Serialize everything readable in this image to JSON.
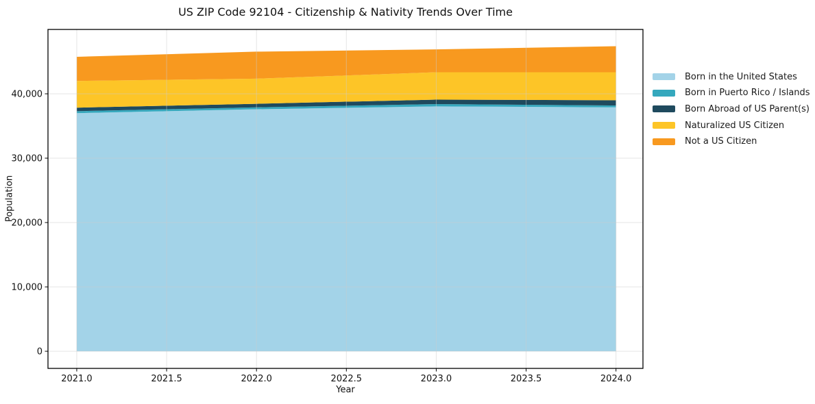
{
  "title": "US ZIP Code 92104 - Citizenship & Nativity Trends Over Time",
  "chart_data": {
    "type": "area",
    "stacked": true,
    "title": "US ZIP Code 92104 - Citizenship & Nativity Trends Over Time",
    "xlabel": "Year",
    "ylabel": "Population",
    "x": [
      2021,
      2022,
      2023,
      2024
    ],
    "series": [
      {
        "name": "Born in the United States",
        "color": "#a3d3e8",
        "values": [
          37000,
          37600,
          38050,
          37900
        ]
      },
      {
        "name": "Born in Puerto Rico / Islands",
        "color": "#35a8bd",
        "values": [
          300,
          300,
          350,
          280
        ]
      },
      {
        "name": "Born Abroad of US Parent(s)",
        "color": "#1f4a5e",
        "values": [
          550,
          550,
          700,
          820
        ]
      },
      {
        "name": "Naturalized US Citizen",
        "color": "#fdc527",
        "values": [
          4150,
          3900,
          4250,
          4350
        ]
      },
      {
        "name": "Not a US Citizen",
        "color": "#f8991f",
        "values": [
          3750,
          4200,
          3550,
          4050
        ]
      }
    ],
    "stacked_totals": [
      45750,
      46550,
      46900,
      47400
    ],
    "xlim": [
      2020.84,
      2024.15
    ],
    "ylim": [
      -2660,
      50000
    ],
    "x_ticks": [
      {
        "v": 2021.0,
        "label": "2021.0"
      },
      {
        "v": 2021.5,
        "label": "2021.5"
      },
      {
        "v": 2022.0,
        "label": "2022.0"
      },
      {
        "v": 2022.5,
        "label": "2022.5"
      },
      {
        "v": 2023.0,
        "label": "2023.0"
      },
      {
        "v": 2023.5,
        "label": "2023.5"
      },
      {
        "v": 2024.0,
        "label": "2024.0"
      }
    ],
    "y_ticks": [
      {
        "v": 0,
        "label": "0"
      },
      {
        "v": 10000,
        "label": "10,000"
      },
      {
        "v": 20000,
        "label": "20,000"
      },
      {
        "v": 30000,
        "label": "30,000"
      },
      {
        "v": 40000,
        "label": "40,000"
      }
    ],
    "grid": true,
    "grid_color": "#cccccc",
    "spine_color": "#000000",
    "legend_position": "right"
  }
}
